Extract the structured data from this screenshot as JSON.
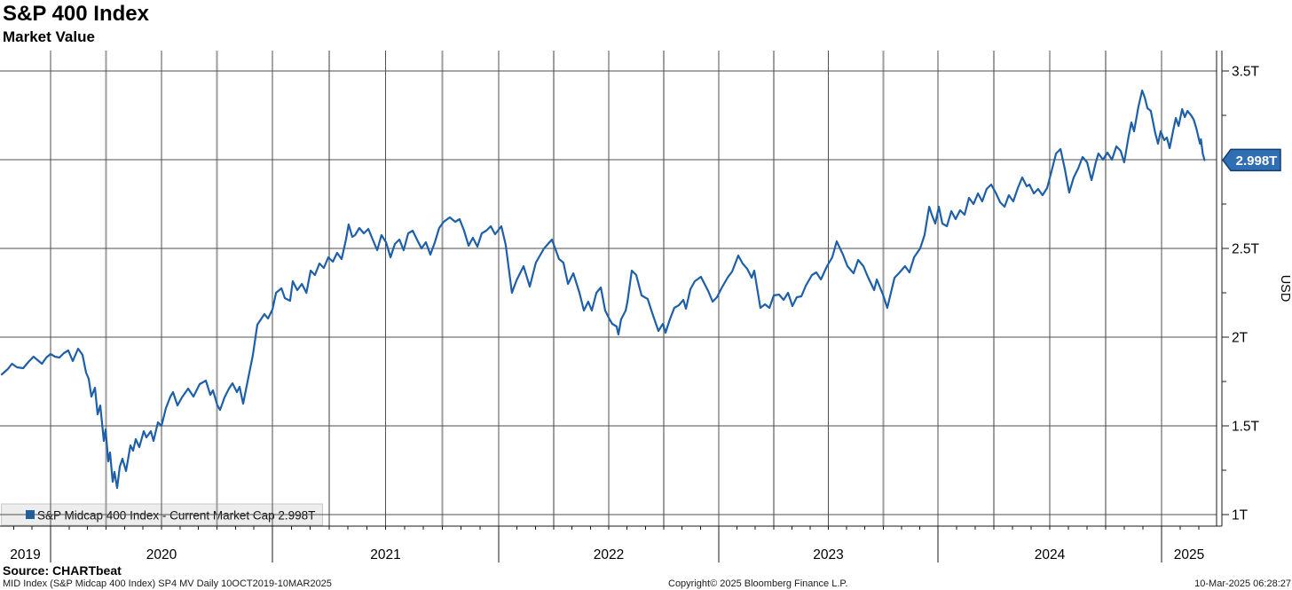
{
  "header": {
    "title": "S&P 400 Index",
    "subtitle": "Market Value"
  },
  "footer": {
    "source": "Source: CHARTbeat",
    "description": "MID Index (S&P Midcap 400 Index) SP4 MV  Daily 10OCT2019-10MAR2025",
    "copyright": "Copyright© 2025 Bloomberg Finance L.P.",
    "timestamp": "10-Mar-2025 06:28:27"
  },
  "chart_data": {
    "type": "line",
    "title": "S&P 400 Index",
    "subtitle": "Market Value",
    "ylabel": "USD",
    "legend": "S&P Midcap 400 Index - Current Market Cap 2.998T",
    "series_name": "S&P Midcap 400 Index",
    "current_value": 2.998,
    "current_value_label": "2.998T",
    "line_color": "#1e5fa9",
    "badge_fill": "#2f6eb3",
    "badge_border": "#123d6e",
    "grid_dark": "#4f4f4f",
    "grid_gray": "#9e9e9e",
    "axis_color": "#1a1a1a",
    "legend_bg": "#ededed",
    "legend_border": "#c9c9c9",
    "x_range_years": [
      2019.78,
      2025.245
    ],
    "x_year_labels": [
      "2019",
      "2020",
      "2021",
      "2022",
      "2023",
      "2024",
      "2025"
    ],
    "y_axis_unit": "T",
    "y_major_ticks": [
      1,
      1.5,
      2,
      2.5,
      3,
      3.5
    ],
    "y_major_labels": {
      "1": "1T",
      "1.5": "1.5T",
      "2": "2T",
      "2.5": "2.5T",
      "3.5": "3.5T"
    },
    "y_minor_ticks": [
      1.25,
      1.75,
      2.25,
      2.75,
      3.25
    ],
    "ylim_trillions": [
      0.935,
      3.615
    ],
    "points": [
      [
        2019.78,
        1.79
      ],
      [
        2019.807,
        1.82
      ],
      [
        2019.826,
        1.85
      ],
      [
        2019.849,
        1.83
      ],
      [
        2019.877,
        1.825
      ],
      [
        2019.9,
        1.86
      ],
      [
        2019.923,
        1.89
      ],
      [
        2019.942,
        1.87
      ],
      [
        2019.961,
        1.85
      ],
      [
        2019.981,
        1.885
      ],
      [
        2020.0,
        1.905
      ],
      [
        2020.02,
        1.89
      ],
      [
        2020.04,
        1.885
      ],
      [
        2020.06,
        1.91
      ],
      [
        2020.08,
        1.925
      ],
      [
        2020.1,
        1.865
      ],
      [
        2020.124,
        1.935
      ],
      [
        2020.144,
        1.9
      ],
      [
        2020.16,
        1.8
      ],
      [
        2020.172,
        1.765
      ],
      [
        2020.184,
        1.665
      ],
      [
        2020.2,
        1.715
      ],
      [
        2020.212,
        1.565
      ],
      [
        2020.224,
        1.615
      ],
      [
        2020.24,
        1.415
      ],
      [
        2020.248,
        1.48
      ],
      [
        2020.26,
        1.3
      ],
      [
        2020.268,
        1.35
      ],
      [
        2020.28,
        1.185
      ],
      [
        2020.288,
        1.24
      ],
      [
        2020.3,
        1.15
      ],
      [
        2020.312,
        1.27
      ],
      [
        2020.324,
        1.315
      ],
      [
        2020.34,
        1.245
      ],
      [
        2020.36,
        1.39
      ],
      [
        2020.372,
        1.36
      ],
      [
        2020.384,
        1.425
      ],
      [
        2020.4,
        1.38
      ],
      [
        2020.42,
        1.47
      ],
      [
        2020.432,
        1.435
      ],
      [
        2020.452,
        1.47
      ],
      [
        2020.464,
        1.415
      ],
      [
        2020.484,
        1.52
      ],
      [
        2020.5,
        1.5
      ],
      [
        2020.52,
        1.6
      ],
      [
        2020.54,
        1.665
      ],
      [
        2020.552,
        1.69
      ],
      [
        2020.572,
        1.615
      ],
      [
        2020.592,
        1.66
      ],
      [
        2020.62,
        1.71
      ],
      [
        2020.644,
        1.665
      ],
      [
        2020.672,
        1.735
      ],
      [
        2020.7,
        1.755
      ],
      [
        2020.72,
        1.675
      ],
      [
        2020.732,
        1.7
      ],
      [
        2020.752,
        1.615
      ],
      [
        2020.764,
        1.59
      ],
      [
        2020.784,
        1.66
      ],
      [
        2020.804,
        1.71
      ],
      [
        2020.82,
        1.74
      ],
      [
        2020.84,
        1.69
      ],
      [
        2020.852,
        1.72
      ],
      [
        2020.868,
        1.625
      ],
      [
        2020.892,
        1.775
      ],
      [
        2020.912,
        1.9
      ],
      [
        2020.932,
        2.07
      ],
      [
        2020.948,
        2.1
      ],
      [
        2020.964,
        2.13
      ],
      [
        2020.98,
        2.105
      ],
      [
        2021.0,
        2.155
      ],
      [
        2021.016,
        2.25
      ],
      [
        2021.04,
        2.275
      ],
      [
        2021.055,
        2.22
      ],
      [
        2021.078,
        2.205
      ],
      [
        2021.09,
        2.315
      ],
      [
        2021.11,
        2.265
      ],
      [
        2021.13,
        2.3
      ],
      [
        2021.15,
        2.25
      ],
      [
        2021.169,
        2.375
      ],
      [
        2021.188,
        2.35
      ],
      [
        2021.208,
        2.415
      ],
      [
        2021.227,
        2.39
      ],
      [
        2021.247,
        2.45
      ],
      [
        2021.267,
        2.425
      ],
      [
        2021.286,
        2.475
      ],
      [
        2021.306,
        2.44
      ],
      [
        2021.325,
        2.55
      ],
      [
        2021.337,
        2.635
      ],
      [
        2021.353,
        2.565
      ],
      [
        2021.365,
        2.575
      ],
      [
        2021.384,
        2.615
      ],
      [
        2021.404,
        2.585
      ],
      [
        2021.424,
        2.61
      ],
      [
        2021.443,
        2.55
      ],
      [
        2021.463,
        2.49
      ],
      [
        2021.482,
        2.575
      ],
      [
        2021.502,
        2.535
      ],
      [
        2021.522,
        2.45
      ],
      [
        2021.541,
        2.525
      ],
      [
        2021.561,
        2.55
      ],
      [
        2021.58,
        2.49
      ],
      [
        2021.6,
        2.585
      ],
      [
        2021.62,
        2.6
      ],
      [
        2021.639,
        2.55
      ],
      [
        2021.659,
        2.5
      ],
      [
        2021.678,
        2.535
      ],
      [
        2021.698,
        2.465
      ],
      [
        2021.718,
        2.535
      ],
      [
        2021.737,
        2.615
      ],
      [
        2021.757,
        2.65
      ],
      [
        2021.784,
        2.675
      ],
      [
        2021.808,
        2.65
      ],
      [
        2021.827,
        2.665
      ],
      [
        2021.847,
        2.6
      ],
      [
        2021.867,
        2.515
      ],
      [
        2021.886,
        2.56
      ],
      [
        2021.906,
        2.51
      ],
      [
        2021.925,
        2.585
      ],
      [
        2021.945,
        2.6
      ],
      [
        2021.965,
        2.625
      ],
      [
        2021.984,
        2.58
      ],
      [
        2022.012,
        2.625
      ],
      [
        2022.032,
        2.52
      ],
      [
        2022.06,
        2.25
      ],
      [
        2022.081,
        2.32
      ],
      [
        2022.113,
        2.4
      ],
      [
        2022.141,
        2.285
      ],
      [
        2022.169,
        2.42
      ],
      [
        2022.206,
        2.5
      ],
      [
        2022.242,
        2.55
      ],
      [
        2022.274,
        2.44
      ],
      [
        2022.294,
        2.42
      ],
      [
        2022.315,
        2.3
      ],
      [
        2022.339,
        2.36
      ],
      [
        2022.367,
        2.25
      ],
      [
        2022.387,
        2.15
      ],
      [
        2022.407,
        2.2
      ],
      [
        2022.423,
        2.15
      ],
      [
        2022.444,
        2.25
      ],
      [
        2022.464,
        2.28
      ],
      [
        2022.484,
        2.15
      ],
      [
        2022.504,
        2.1
      ],
      [
        2022.516,
        2.075
      ],
      [
        2022.536,
        2.06
      ],
      [
        2022.544,
        2.015
      ],
      [
        2022.556,
        2.1
      ],
      [
        2022.577,
        2.15
      ],
      [
        2022.585,
        2.2
      ],
      [
        2022.605,
        2.375
      ],
      [
        2022.625,
        2.35
      ],
      [
        2022.649,
        2.235
      ],
      [
        2022.677,
        2.215
      ],
      [
        2022.698,
        2.135
      ],
      [
        2022.726,
        2.035
      ],
      [
        2022.746,
        2.075
      ],
      [
        2022.758,
        2.025
      ],
      [
        2022.778,
        2.1
      ],
      [
        2022.798,
        2.165
      ],
      [
        2022.819,
        2.18
      ],
      [
        2022.839,
        2.21
      ],
      [
        2022.851,
        2.16
      ],
      [
        2022.871,
        2.27
      ],
      [
        2022.891,
        2.315
      ],
      [
        2022.919,
        2.34
      ],
      [
        2022.952,
        2.26
      ],
      [
        2022.972,
        2.2
      ],
      [
        2022.992,
        2.225
      ],
      [
        2023.012,
        2.275
      ],
      [
        2023.04,
        2.335
      ],
      [
        2023.061,
        2.37
      ],
      [
        2023.089,
        2.46
      ],
      [
        2023.109,
        2.415
      ],
      [
        2023.13,
        2.385
      ],
      [
        2023.15,
        2.335
      ],
      [
        2023.162,
        2.375
      ],
      [
        2023.19,
        2.165
      ],
      [
        2023.211,
        2.185
      ],
      [
        2023.231,
        2.165
      ],
      [
        2023.251,
        2.235
      ],
      [
        2023.275,
        2.24
      ],
      [
        2023.296,
        2.21
      ],
      [
        2023.316,
        2.25
      ],
      [
        2023.336,
        2.175
      ],
      [
        2023.356,
        2.225
      ],
      [
        2023.377,
        2.23
      ],
      [
        2023.397,
        2.29
      ],
      [
        2023.425,
        2.35
      ],
      [
        2023.445,
        2.365
      ],
      [
        2023.466,
        2.325
      ],
      [
        2023.494,
        2.4
      ],
      [
        2023.518,
        2.45
      ],
      [
        2023.538,
        2.54
      ],
      [
        2023.567,
        2.465
      ],
      [
        2023.587,
        2.4
      ],
      [
        2023.615,
        2.36
      ],
      [
        2023.636,
        2.435
      ],
      [
        2023.66,
        2.4
      ],
      [
        2023.68,
        2.34
      ],
      [
        2023.709,
        2.265
      ],
      [
        2023.721,
        2.325
      ],
      [
        2023.749,
        2.24
      ],
      [
        2023.769,
        2.165
      ],
      [
        2023.802,
        2.335
      ],
      [
        2023.822,
        2.36
      ],
      [
        2023.85,
        2.4
      ],
      [
        2023.87,
        2.365
      ],
      [
        2023.891,
        2.45
      ],
      [
        2023.919,
        2.5
      ],
      [
        2023.939,
        2.575
      ],
      [
        2023.96,
        2.735
      ],
      [
        2023.972,
        2.69
      ],
      [
        2023.988,
        2.64
      ],
      [
        2024.004,
        2.735
      ],
      [
        2024.02,
        2.64
      ],
      [
        2024.04,
        2.625
      ],
      [
        2024.06,
        2.71
      ],
      [
        2024.079,
        2.665
      ],
      [
        2024.099,
        2.715
      ],
      [
        2024.119,
        2.69
      ],
      [
        2024.139,
        2.785
      ],
      [
        2024.159,
        2.75
      ],
      [
        2024.179,
        2.81
      ],
      [
        2024.198,
        2.765
      ],
      [
        2024.218,
        2.835
      ],
      [
        2024.238,
        2.86
      ],
      [
        2024.258,
        2.815
      ],
      [
        2024.278,
        2.76
      ],
      [
        2024.298,
        2.735
      ],
      [
        2024.317,
        2.8
      ],
      [
        2024.337,
        2.765
      ],
      [
        2024.357,
        2.84
      ],
      [
        2024.377,
        2.9
      ],
      [
        2024.397,
        2.85
      ],
      [
        2024.409,
        2.86
      ],
      [
        2024.429,
        2.81
      ],
      [
        2024.448,
        2.835
      ],
      [
        2024.468,
        2.8
      ],
      [
        2024.488,
        2.84
      ],
      [
        2024.508,
        2.935
      ],
      [
        2024.528,
        3.035
      ],
      [
        2024.548,
        3.06
      ],
      [
        2024.567,
        2.95
      ],
      [
        2024.587,
        2.815
      ],
      [
        2024.607,
        2.9
      ],
      [
        2024.627,
        2.95
      ],
      [
        2024.647,
        3.015
      ],
      [
        2024.667,
        2.985
      ],
      [
        2024.687,
        2.885
      ],
      [
        2024.706,
        2.985
      ],
      [
        2024.718,
        3.035
      ],
      [
        2024.738,
        3.0
      ],
      [
        2024.758,
        3.04
      ],
      [
        2024.778,
        3.0
      ],
      [
        2024.798,
        3.075
      ],
      [
        2024.817,
        3.05
      ],
      [
        2024.833,
        2.985
      ],
      [
        2024.853,
        3.135
      ],
      [
        2024.865,
        3.21
      ],
      [
        2024.877,
        3.16
      ],
      [
        2024.897,
        3.3
      ],
      [
        2024.913,
        3.39
      ],
      [
        2024.925,
        3.35
      ],
      [
        2024.937,
        3.29
      ],
      [
        2024.952,
        3.275
      ],
      [
        2024.972,
        3.15
      ],
      [
        2024.984,
        3.09
      ],
      [
        2024.996,
        3.16
      ],
      [
        2025.012,
        3.11
      ],
      [
        2025.024,
        3.125
      ],
      [
        2025.036,
        3.065
      ],
      [
        2025.052,
        3.165
      ],
      [
        2025.064,
        3.235
      ],
      [
        2025.076,
        3.19
      ],
      [
        2025.092,
        3.285
      ],
      [
        2025.104,
        3.24
      ],
      [
        2025.116,
        3.275
      ],
      [
        2025.132,
        3.25
      ],
      [
        2025.144,
        3.225
      ],
      [
        2025.156,
        3.175
      ],
      [
        2025.172,
        3.09
      ],
      [
        2025.176,
        3.115
      ],
      [
        2025.184,
        3.035
      ],
      [
        2025.192,
        2.998
      ]
    ]
  }
}
